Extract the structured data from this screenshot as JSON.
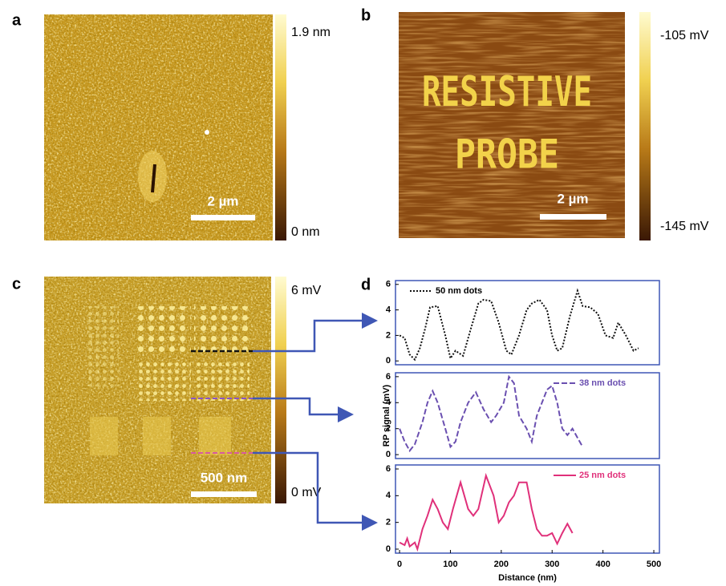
{
  "panels": {
    "a": {
      "letter": "a",
      "colorbar_max": "1.9 nm",
      "colorbar_min": "0 nm",
      "scale_bar": "2 µm"
    },
    "b": {
      "letter": "b",
      "colorbar_max": "-105  mV",
      "colorbar_min": "-145 mV",
      "scale_bar": "2 µm",
      "image_text": [
        "RESISTIVE",
        "PROBE"
      ]
    },
    "c": {
      "letter": "c",
      "colorbar_max": "6 mV",
      "colorbar_min": "0 mV",
      "scale_bar": "500 nm"
    },
    "d": {
      "letter": "d"
    }
  },
  "chart_data": [
    {
      "type": "line",
      "legend": "top-left",
      "x": [
        0,
        10,
        20,
        30,
        40,
        50,
        60,
        75,
        90,
        100,
        110,
        125,
        140,
        155,
        165,
        180,
        195,
        210,
        220,
        235,
        250,
        260,
        275,
        290,
        300,
        310,
        320,
        335,
        350,
        360,
        375,
        390,
        405,
        420,
        430,
        445,
        460,
        470
      ],
      "series": [
        {
          "name": "50 nm dots",
          "color": "#111111",
          "style": "dotted",
          "values": [
            2,
            1.8,
            0.5,
            0.1,
            1,
            2.5,
            4.2,
            4.3,
            2,
            0.2,
            0.8,
            0.4,
            2.5,
            4.5,
            4.8,
            4.7,
            3,
            0.8,
            0.5,
            2,
            4,
            4.5,
            4.8,
            4,
            2,
            0.8,
            1,
            3.5,
            5.5,
            4.3,
            4.2,
            3.7,
            2,
            1.8,
            3,
            2,
            0.8,
            1
          ]
        }
      ],
      "xlim": [
        -8,
        511
      ],
      "ylim": [
        -0.3,
        6.3
      ],
      "yticks": [
        0,
        2,
        4,
        6
      ]
    },
    {
      "type": "line",
      "legend": "top-right",
      "ylabel": "RP signal (mV)",
      "x": [
        0,
        10,
        20,
        30,
        45,
        55,
        65,
        75,
        90,
        100,
        110,
        120,
        135,
        150,
        165,
        180,
        190,
        205,
        215,
        225,
        235,
        250,
        260,
        270,
        280,
        290,
        300,
        310,
        320,
        330,
        340,
        350,
        360
      ],
      "series": [
        {
          "name": "38 nm dots",
          "color": "#6a4fb0",
          "style": "dashed",
          "values": [
            2,
            1,
            0.3,
            0.8,
            2.5,
            4,
            4.9,
            4,
            2,
            0.6,
            1,
            2.5,
            4,
            4.8,
            3.5,
            2.5,
            3,
            4,
            6,
            5.5,
            3,
            2,
            1,
            3,
            4,
            5,
            5.3,
            4,
            2,
            1.5,
            2,
            1.3,
            0.6
          ]
        }
      ],
      "xlim": [
        -8,
        511
      ],
      "ylim": [
        -0.3,
        6.3
      ],
      "yticks": [
        0,
        2,
        4,
        6
      ]
    },
    {
      "type": "line",
      "legend": "top-right",
      "xlabel": "Distance (nm)",
      "x": [
        0,
        10,
        15,
        20,
        30,
        35,
        45,
        55,
        65,
        75,
        85,
        95,
        105,
        120,
        135,
        145,
        155,
        170,
        185,
        195,
        205,
        215,
        225,
        235,
        250,
        260,
        270,
        280,
        290,
        300,
        310,
        320,
        330,
        340
      ],
      "series": [
        {
          "name": "25 nm dots",
          "color": "#e0307a",
          "style": "solid",
          "values": [
            0.5,
            0.3,
            0.8,
            0.2,
            0.5,
            0,
            1.5,
            2.5,
            3.7,
            3,
            2,
            1.5,
            3,
            5,
            3,
            2.5,
            3,
            5.5,
            4,
            2,
            2.5,
            3.5,
            4,
            5,
            5,
            3,
            1.5,
            1,
            1,
            1.2,
            0.4,
            1.2,
            1.9,
            1.2
          ]
        }
      ],
      "xlim": [
        -8,
        511
      ],
      "ylim": [
        -0.3,
        6.3
      ],
      "yticks": [
        0,
        2,
        4,
        6
      ],
      "xticks": [
        0,
        100,
        200,
        300,
        400,
        500
      ]
    }
  ]
}
